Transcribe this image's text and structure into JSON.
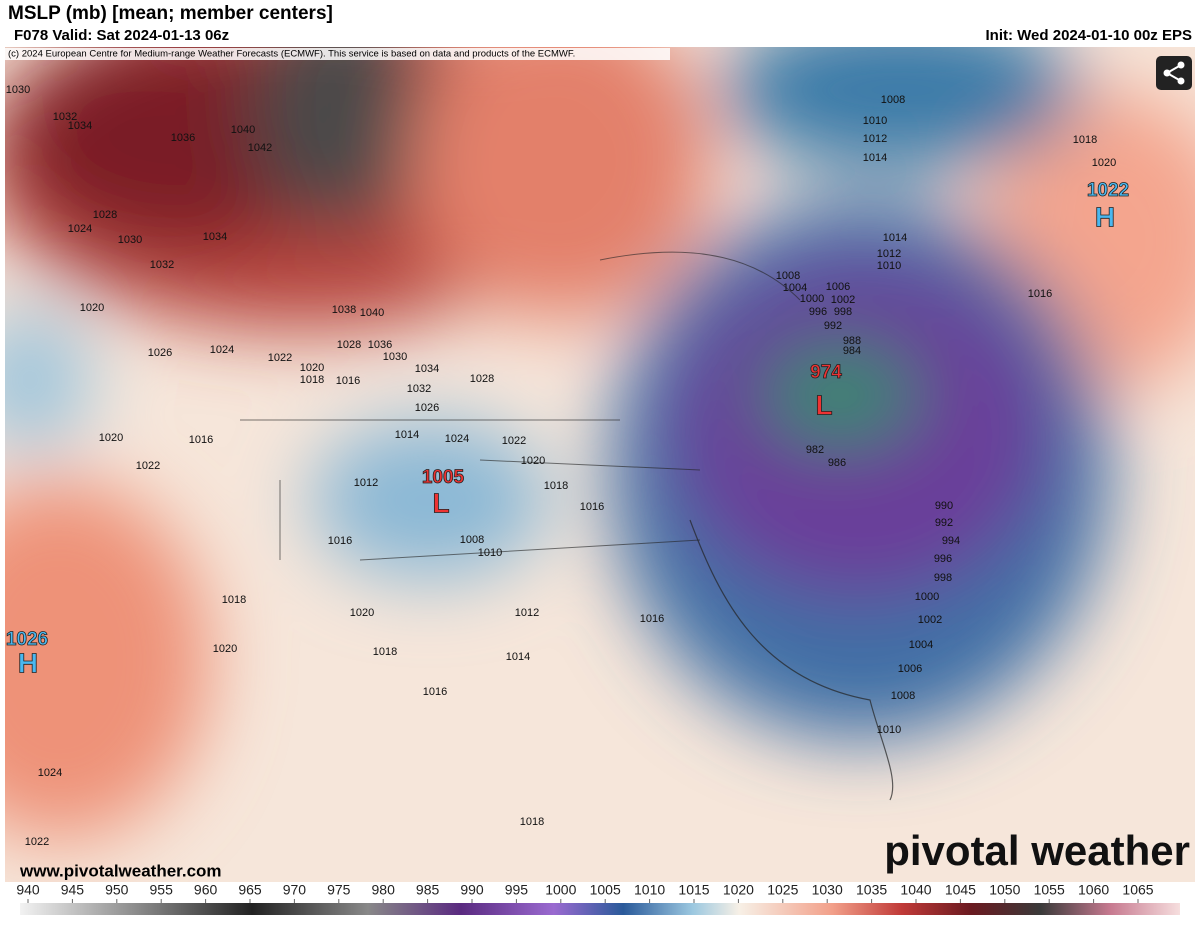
{
  "header": {
    "title": "MSLP (mb) [mean; member centers]",
    "valid": "F078 Valid: Sat 2024-01-13 06z",
    "init": "Init: Wed 2024-01-10 00z EPS",
    "credit": "(c) 2024 European Centre for Medium-range Weather Forecasts (ECMWF). This service is based on data and products of the ECMWF."
  },
  "centers": [
    {
      "value": 974,
      "letter": "L"
    },
    {
      "value": 1005,
      "letter": "L"
    },
    {
      "value": 1022,
      "letter": "H"
    },
    {
      "value": 1026,
      "letter": "H"
    }
  ],
  "isobar_labels": [
    1030,
    1032,
    1034,
    1036,
    1040,
    1042,
    1028,
    1024,
    1030,
    1034,
    1032,
    1020,
    1026,
    1024,
    1022,
    1038,
    1040,
    1028,
    1036,
    1030,
    1034,
    1032,
    1026,
    1028,
    1020,
    1018,
    1016,
    1014,
    1024,
    1022,
    1020,
    1018,
    1016,
    1016,
    1020,
    1022,
    1012,
    1008,
    1010,
    1016,
    1012,
    1014,
    1018,
    1020,
    1020,
    1018,
    1016,
    1016,
    1024,
    1022,
    1018,
    1008,
    1010,
    1012,
    1014,
    1018,
    1020,
    1014,
    1012,
    1010,
    1016,
    1008,
    1006,
    1004,
    1002,
    1000,
    998,
    996,
    992,
    988,
    984,
    986,
    982,
    990,
    992,
    994,
    996,
    998,
    1000,
    1002,
    1004,
    1006,
    1008,
    1010
  ],
  "colorbar": {
    "ticks": [
      940,
      945,
      950,
      955,
      960,
      965,
      970,
      975,
      980,
      985,
      990,
      995,
      1000,
      1005,
      1010,
      1015,
      1020,
      1025,
      1030,
      1035,
      1040,
      1045,
      1050,
      1055,
      1060,
      1065
    ]
  },
  "footer": {
    "url": "www.pivotalweather.com",
    "brand": "pivotal weather"
  }
}
